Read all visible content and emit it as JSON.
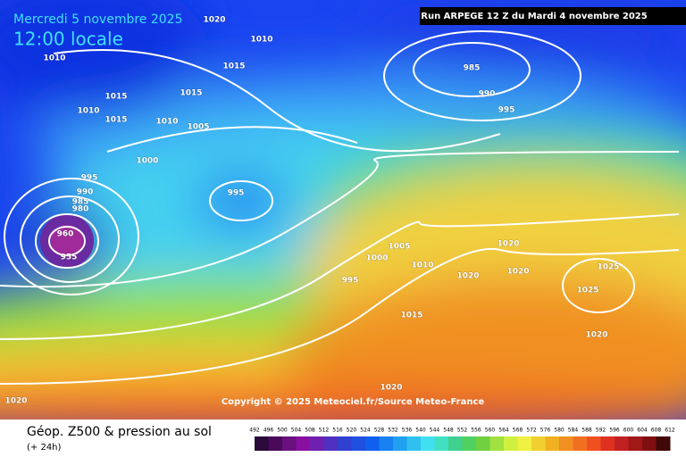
{
  "header": {
    "date": "Mercredi 5 novembre 2025",
    "time": "12:00 locale",
    "run": "Run ARPEGE 12 Z du Mardi 4 novembre 2025"
  },
  "map": {
    "copyright": "Copyright © 2025 Meteociel.fr/Source Meteo-France",
    "isobar_labels": [
      "985",
      "990",
      "995",
      "1020",
      "1010",
      "1015",
      "1015",
      "1010",
      "1015",
      "1010",
      "1005",
      "1000",
      "995",
      "990",
      "985",
      "980",
      "960",
      "955",
      "995",
      "1000",
      "1005",
      "1010",
      "995",
      "1015",
      "1020",
      "1020",
      "1020",
      "1025",
      "1025",
      "1020",
      "1020",
      "1020",
      "1010",
      "1015"
    ]
  },
  "legend": {
    "title": "Géop. Z500 & pression au sol",
    "subtitle": "(+ 24h)",
    "scale": [
      492,
      496,
      500,
      504,
      508,
      512,
      516,
      520,
      524,
      528,
      532,
      536,
      540,
      544,
      548,
      552,
      556,
      560,
      564,
      568,
      572,
      576,
      580,
      584,
      588,
      592,
      596,
      600,
      604,
      608,
      612
    ]
  }
}
